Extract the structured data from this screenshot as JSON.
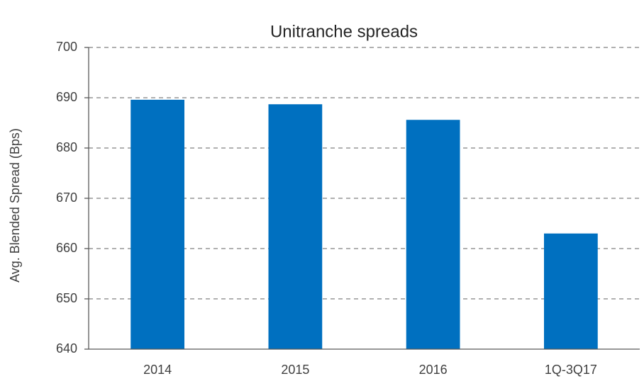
{
  "chart_data": {
    "type": "bar",
    "title": "Unitranche spreads",
    "y_label": "Avg. Blended Spread (Bps)",
    "categories": [
      "2014",
      "2015",
      "2016",
      "1Q-3Q17"
    ],
    "values": [
      689.6,
      688.7,
      685.6,
      663
    ],
    "color": "#0070c0",
    "ylim": [
      640,
      700
    ],
    "yticks": [
      640,
      650,
      660,
      670,
      680,
      690,
      700
    ],
    "grid": true
  }
}
